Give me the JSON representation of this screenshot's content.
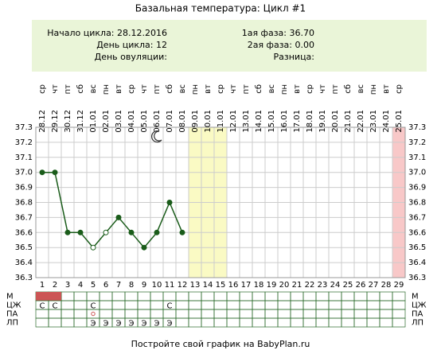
{
  "chart_data": {
    "type": "line",
    "title": "Базальная температура: Цикл #1",
    "info_left": [
      "Начало цикла: 28.12.2016",
      "День цикла: 12",
      "День овуляции:"
    ],
    "info_right": [
      "1ая фаза: 36.70",
      "2ая фаза: 0.00",
      "Разница:"
    ],
    "weekdays": [
      "ср",
      "чт",
      "пт",
      "сб",
      "вс",
      "пн",
      "вт",
      "ср",
      "чт",
      "пт",
      "сб",
      "вс",
      "пн",
      "вт",
      "ср",
      "чт",
      "пт",
      "сб",
      "вс",
      "пн",
      "вт",
      "ср",
      "чт",
      "пт",
      "сб",
      "вс",
      "пн",
      "вт",
      "ср"
    ],
    "dates": [
      "28.12",
      "29.12",
      "30.12",
      "31.12",
      "01.01",
      "02.01",
      "03.01",
      "04.01",
      "05.01",
      "06.01",
      "07.01",
      "08.01",
      "09.01",
      "10.01",
      "11.01",
      "12.01",
      "13.01",
      "14.01",
      "15.01",
      "16.01",
      "17.01",
      "18.01",
      "19.01",
      "20.01",
      "21.01",
      "22.01",
      "23.01",
      "24.01",
      "25.01"
    ],
    "categories": [
      1,
      2,
      3,
      4,
      5,
      6,
      7,
      8,
      9,
      10,
      11,
      12,
      13,
      14,
      15,
      16,
      17,
      18,
      19,
      20,
      21,
      22,
      23,
      24,
      25,
      26,
      27,
      28,
      29
    ],
    "series": [
      {
        "color": "#1a5c1a",
        "values": [
          37.0,
          37.0,
          36.6,
          36.6,
          36.5,
          36.6,
          36.7,
          36.6,
          36.5,
          36.6,
          36.8,
          36.6,
          null,
          null,
          null,
          null,
          null,
          null,
          null,
          null,
          null,
          null,
          null,
          null,
          null,
          null,
          null,
          null,
          null
        ]
      }
    ],
    "hollow_points": [
      4,
      5
    ],
    "ylim": [
      36.3,
      37.3
    ],
    "yticks": [
      36.3,
      36.4,
      36.5,
      36.6,
      36.7,
      36.8,
      36.9,
      {
        "value": 37,
        "label": "37.0"
      },
      37.1,
      37.2,
      37.3
    ],
    "grid": true,
    "highlights": [
      {
        "from": 13,
        "to": 15,
        "color": "#fafac4"
      },
      {
        "from": 29,
        "to": 29,
        "color": "#f8c8c8"
      }
    ],
    "moon_day": 10,
    "table": [
      {
        "label": "М",
        "filled_days": [
          1,
          2
        ],
        "color": "#cc5555"
      },
      {
        "label": "ЦЖ",
        "cells": [
          "С",
          "С",
          null,
          null,
          "С",
          null,
          null,
          null,
          null,
          null,
          "С",
          null,
          null,
          null,
          null,
          null,
          null,
          null,
          null,
          null,
          null,
          null,
          null,
          null,
          null,
          null,
          null,
          null,
          null
        ]
      },
      {
        "label": "ПА",
        "circle_days": [
          5
        ],
        "color": "#cc5555"
      },
      {
        "label": "ЛП",
        "cells": [
          null,
          null,
          null,
          null,
          "Э",
          "Э",
          "Э",
          "Э",
          "Э",
          "Э",
          "Э",
          null,
          null,
          null,
          null,
          null,
          null,
          null,
          null,
          null,
          null,
          null,
          null,
          null,
          null,
          null,
          null,
          null,
          null
        ]
      }
    ],
    "footer": "Постройте свой график на BabyPlan.ru"
  }
}
